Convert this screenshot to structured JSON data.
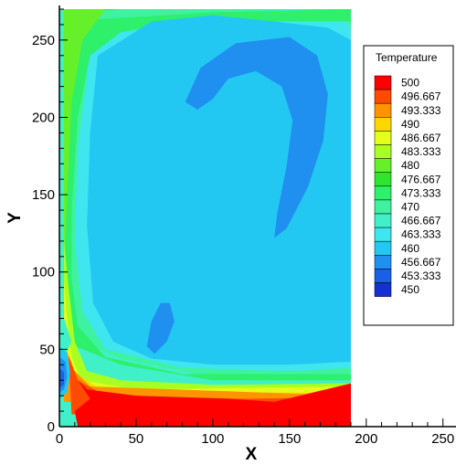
{
  "chart_data": {
    "type": "heatmap",
    "title": "",
    "xlabel": "X",
    "ylabel": "Y",
    "xlim": [
      0,
      260
    ],
    "ylim": [
      0,
      270
    ],
    "data_extent": {
      "x": [
        0,
        190
      ],
      "y": [
        0,
        270
      ]
    },
    "xticks": [
      0,
      50,
      100,
      150,
      200,
      250
    ],
    "yticks": [
      0,
      50,
      100,
      150,
      200,
      250
    ],
    "xtick_labels": [
      "0",
      "50",
      "100",
      "150",
      "200",
      "250"
    ],
    "ytick_labels": [
      "0",
      "50",
      "100",
      "150",
      "200",
      "250"
    ],
    "grid": false,
    "legend": {
      "title": "Temperature",
      "placement": "right",
      "levels": [
        {
          "label": "500",
          "color": "#ff0000"
        },
        {
          "label": "496.667",
          "color": "#ff4a00"
        },
        {
          "label": "493.333",
          "color": "#ff9400"
        },
        {
          "label": "490",
          "color": "#ffd700"
        },
        {
          "label": "486.667",
          "color": "#e3ff1a"
        },
        {
          "label": "483.333",
          "color": "#a9ff22"
        },
        {
          "label": "480",
          "color": "#66f02a"
        },
        {
          "label": "476.667",
          "color": "#2ee62e"
        },
        {
          "label": "473.333",
          "color": "#2ef06a"
        },
        {
          "label": "470",
          "color": "#3ef2a0"
        },
        {
          "label": "466.667",
          "color": "#40f0c8"
        },
        {
          "label": "463.333",
          "color": "#3fe6f0"
        },
        {
          "label": "460",
          "color": "#23c8f2"
        },
        {
          "label": "456.667",
          "color": "#1f8ff0"
        },
        {
          "label": "453.333",
          "color": "#1a5fe6"
        },
        {
          "label": "450",
          "color": "#1430d2"
        }
      ]
    },
    "regions": [
      {
        "name": "band-470",
        "level": "470",
        "points": [
          [
            3,
            270
          ],
          [
            190,
            270
          ],
          [
            190,
            32
          ],
          [
            100,
            32
          ],
          [
            40,
            44
          ],
          [
            3,
            60
          ]
        ]
      },
      {
        "name": "band-463",
        "level": "463.333",
        "points": [
          [
            20,
            255
          ],
          [
            90,
            265
          ],
          [
            150,
            270
          ],
          [
            185,
            268
          ],
          [
            190,
            255
          ],
          [
            190,
            38
          ],
          [
            150,
            36
          ],
          [
            80,
            38
          ],
          [
            30,
            50
          ],
          [
            15,
            75
          ],
          [
            10,
            120
          ],
          [
            12,
            180
          ],
          [
            18,
            225
          ]
        ]
      },
      {
        "name": "band-473",
        "level": "473.333",
        "points": [
          [
            3,
            262
          ],
          [
            100,
            268
          ],
          [
            190,
            270
          ],
          [
            190,
            262
          ],
          [
            140,
            262
          ],
          [
            80,
            262
          ],
          [
            40,
            255
          ],
          [
            20,
            240
          ],
          [
            12,
            200
          ],
          [
            8,
            140
          ],
          [
            8,
            95
          ],
          [
            12,
            65
          ],
          [
            30,
            45
          ],
          [
            80,
            34
          ],
          [
            190,
            34
          ],
          [
            190,
            30
          ],
          [
            100,
            30
          ],
          [
            40,
            40
          ],
          [
            3,
            55
          ]
        ]
      },
      {
        "name": "band-476",
        "level": "476.667",
        "points": [
          [
            3,
            268
          ],
          [
            40,
            270
          ],
          [
            3,
            270
          ]
        ]
      },
      {
        "name": "band-480",
        "level": "480",
        "points": [
          [
            3,
            270
          ],
          [
            30,
            270
          ],
          [
            15,
            250
          ],
          [
            8,
            210
          ],
          [
            5,
            150
          ],
          [
            4,
            120
          ],
          [
            3,
            80
          ]
        ]
      },
      {
        "name": "band-460",
        "level": "460",
        "points": [
          [
            25,
            240
          ],
          [
            60,
            262
          ],
          [
            100,
            266
          ],
          [
            140,
            262
          ],
          [
            175,
            258
          ],
          [
            190,
            250
          ],
          [
            190,
            42
          ],
          [
            150,
            40
          ],
          [
            100,
            40
          ],
          [
            60,
            44
          ],
          [
            35,
            55
          ],
          [
            22,
            80
          ],
          [
            18,
            130
          ],
          [
            20,
            190
          ]
        ]
      },
      {
        "name": "blob-456-upper",
        "level": "456.667",
        "points": [
          [
            82,
            210
          ],
          [
            92,
            232
          ],
          [
            115,
            248
          ],
          [
            150,
            252
          ],
          [
            168,
            240
          ],
          [
            175,
            215
          ],
          [
            172,
            185
          ],
          [
            162,
            155
          ],
          [
            148,
            128
          ],
          [
            140,
            122
          ],
          [
            142,
            138
          ],
          [
            148,
            168
          ],
          [
            152,
            198
          ],
          [
            145,
            220
          ],
          [
            128,
            230
          ],
          [
            110,
            225
          ],
          [
            100,
            212
          ],
          [
            90,
            205
          ]
        ]
      },
      {
        "name": "blob-456-lower",
        "level": "456.667",
        "points": [
          [
            57,
            52
          ],
          [
            60,
            68
          ],
          [
            66,
            80
          ],
          [
            72,
            80
          ],
          [
            75,
            68
          ],
          [
            70,
            55
          ],
          [
            62,
            47
          ]
        ]
      },
      {
        "name": "band-483",
        "level": "483.333",
        "points": [
          [
            3,
            120
          ],
          [
            6,
            90
          ],
          [
            10,
            55
          ],
          [
            18,
            36
          ],
          [
            40,
            30
          ],
          [
            100,
            27
          ],
          [
            190,
            28
          ],
          [
            190,
            22
          ],
          [
            100,
            22
          ],
          [
            20,
            24
          ],
          [
            3,
            30
          ]
        ]
      },
      {
        "name": "band-486",
        "level": "486.667",
        "points": [
          [
            3,
            95
          ],
          [
            5,
            70
          ],
          [
            8,
            45
          ],
          [
            14,
            30
          ],
          [
            50,
            24
          ],
          [
            190,
            26
          ],
          [
            190,
            20
          ],
          [
            60,
            18
          ],
          [
            3,
            25
          ]
        ]
      },
      {
        "name": "band-490",
        "level": "490",
        "points": [
          [
            3,
            72
          ],
          [
            5,
            50
          ],
          [
            10,
            35
          ],
          [
            30,
            22
          ],
          [
            190,
            22
          ],
          [
            190,
            16
          ],
          [
            40,
            14
          ],
          [
            3,
            20
          ]
        ]
      },
      {
        "name": "band-493",
        "level": "493.333",
        "points": [
          [
            3,
            55
          ],
          [
            8,
            38
          ],
          [
            20,
            26
          ],
          [
            190,
            20
          ],
          [
            190,
            12
          ],
          [
            3,
            16
          ]
        ]
      },
      {
        "name": "band-496",
        "level": "496.667",
        "points": [
          [
            6,
            46
          ],
          [
            12,
            30
          ],
          [
            30,
            20
          ],
          [
            120,
            18
          ],
          [
            190,
            19
          ],
          [
            190,
            8
          ],
          [
            8,
            8
          ]
        ]
      },
      {
        "name": "band-500",
        "level": "500",
        "points": [
          [
            12,
            30
          ],
          [
            18,
            24
          ],
          [
            50,
            20
          ],
          [
            110,
            18
          ],
          [
            140,
            16
          ],
          [
            165,
            22
          ],
          [
            190,
            28
          ],
          [
            190,
            0
          ],
          [
            12,
            0
          ],
          [
            10,
            10
          ],
          [
            20,
            18
          ]
        ]
      },
      {
        "name": "edge-466",
        "level": "466.667",
        "points": [
          [
            3,
            70
          ],
          [
            8,
            55
          ],
          [
            3,
            45
          ]
        ]
      },
      {
        "name": "cold-460",
        "level": "460",
        "points": [
          [
            0,
            52
          ],
          [
            5,
            48
          ],
          [
            7,
            35
          ],
          [
            5,
            22
          ],
          [
            0,
            18
          ]
        ]
      },
      {
        "name": "cold-456",
        "level": "456.667",
        "points": [
          [
            0,
            45
          ],
          [
            4,
            42
          ],
          [
            5,
            32
          ],
          [
            3,
            24
          ],
          [
            0,
            22
          ]
        ]
      },
      {
        "name": "cold-453",
        "level": "453.333",
        "points": [
          [
            0,
            38
          ],
          [
            3,
            35
          ],
          [
            3,
            27
          ],
          [
            0,
            25
          ]
        ]
      }
    ]
  }
}
